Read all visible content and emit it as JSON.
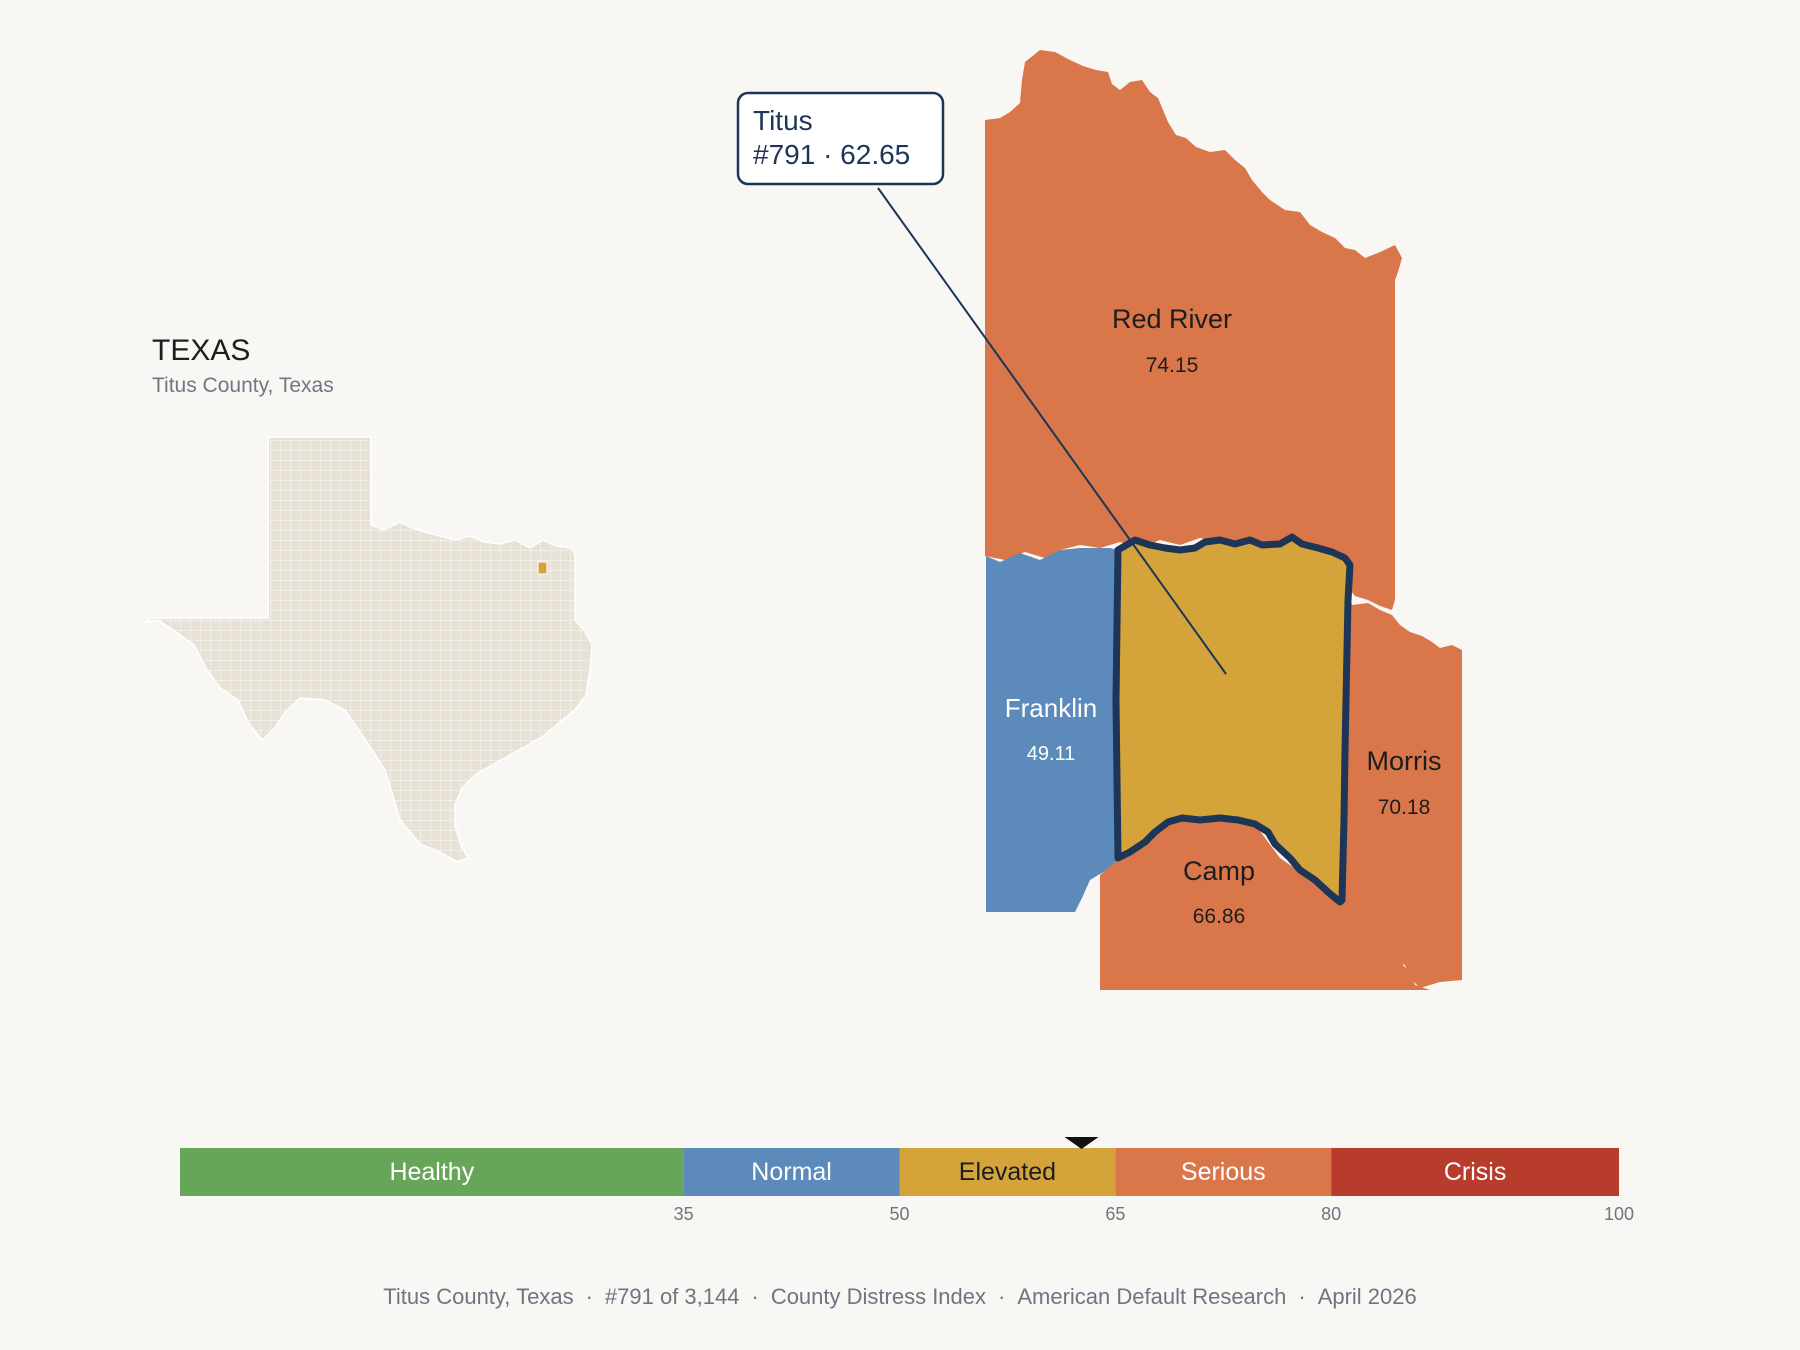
{
  "inset": {
    "state": "TEXAS",
    "subtitle": "Titus County, Texas"
  },
  "callout": {
    "name": "Titus",
    "rank_score": "#791 · 62.65"
  },
  "counties": [
    {
      "key": "red_river",
      "name": "Red River",
      "score": "74.15",
      "category": "Serious"
    },
    {
      "key": "franklin",
      "name": "Franklin",
      "score": "49.11",
      "category": "Normal"
    },
    {
      "key": "titus",
      "name": "Titus",
      "score": "62.65",
      "category": "Elevated",
      "selected": true
    },
    {
      "key": "morris",
      "name": "Morris",
      "score": "70.18",
      "category": "Serious"
    },
    {
      "key": "camp",
      "name": "Camp",
      "score": "66.86",
      "category": "Serious"
    }
  ],
  "legend": {
    "bands": [
      {
        "label": "Healthy",
        "from": 0,
        "to": 35,
        "color": "#67a659"
      },
      {
        "label": "Normal",
        "from": 35,
        "to": 50,
        "color": "#5b8abb"
      },
      {
        "label": "Elevated",
        "from": 50,
        "to": 65,
        "color": "#d4a43b"
      },
      {
        "label": "Serious",
        "from": 65,
        "to": 80,
        "color": "#da774a"
      },
      {
        "label": "Crisis",
        "from": 80,
        "to": 100,
        "color": "#b83c2b"
      }
    ],
    "ticks": [
      "35",
      "50",
      "65",
      "80",
      "100"
    ],
    "marker_value": 62.65
  },
  "footer": {
    "county": "Titus County, Texas",
    "rank": "#791 of 3,144",
    "index": "County Distress Index",
    "org": "American Default Research",
    "date": "April 2026"
  },
  "colors": {
    "background": "#f9f7f4",
    "outline": "#1d3557",
    "state_fill": "#e8e2d6",
    "highlight": "#d4a43b"
  }
}
